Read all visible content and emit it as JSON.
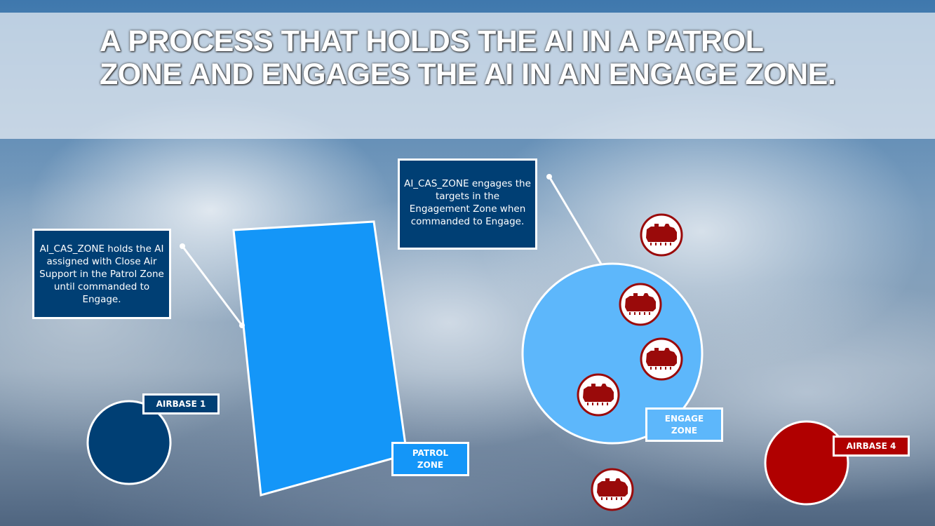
{
  "title": "A PROCESS THAT HOLDS THE AI IN A PATROL ZONE AND ENGAGES THE AI IN AN ENGAGE ZONE.",
  "notes": {
    "patrol": "AI_CAS_ZONE holds the AI assigned with Close Air Support in the Patrol Zone until commanded to Engage.",
    "engage": "AI_CAS_ZONE engages the targets in the Engagement Zone when commanded to Engage."
  },
  "labels": {
    "airbase1": "AIRBASE 1",
    "patrol_zone": "PATROL ZONE",
    "engage_zone": "ENGAGE ZONE",
    "airbase4": "AIRBASE 4"
  },
  "colors": {
    "patrol_zone": "#1496f8",
    "engage_zone": "#5db7fb",
    "airbase1": "#003f74",
    "airbase4": "#b00000",
    "target": "#9a0a0a",
    "note_bg": "#003f74"
  },
  "icons": {
    "target": "armored-vehicle-icon"
  }
}
